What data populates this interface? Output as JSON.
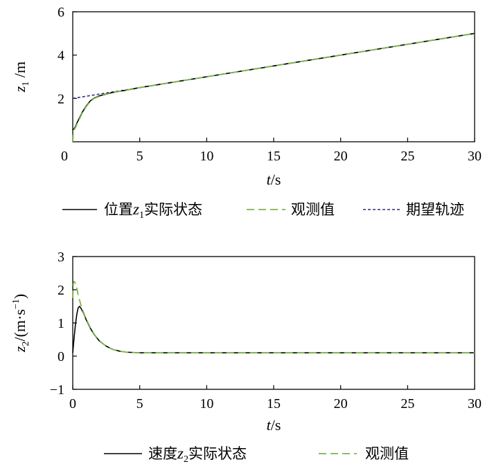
{
  "chart_data": [
    {
      "type": "line",
      "ylabel_var": "z",
      "ylabel_sub": "1",
      "ylabel_unit": " /m",
      "xlabel_var": "t",
      "xlabel_unit": "/s",
      "xlim": [
        0,
        30
      ],
      "ylim": [
        0,
        6
      ],
      "xticks": [
        0,
        5,
        10,
        15,
        20,
        25,
        30
      ],
      "yticks": [
        2,
        4,
        6
      ],
      "grid": false,
      "legend_position": "bottom",
      "series": [
        {
          "name": "位置z₁实际状态",
          "legend_prefix": "位置",
          "legend_var": "z",
          "legend_sub": "1",
          "legend_suffix": "实际状态",
          "color": "#000000",
          "style": "solid",
          "x": [
            0,
            0.1,
            0.2,
            0.3,
            0.5,
            0.7,
            1.0,
            1.3,
            1.6,
            2.0,
            2.5,
            3.0,
            3.5,
            4.0,
            5,
            10,
            15,
            20,
            25,
            30
          ],
          "y": [
            0.55,
            0.6,
            0.7,
            0.85,
            1.1,
            1.35,
            1.65,
            1.88,
            2.02,
            2.12,
            2.2,
            2.28,
            2.33,
            2.38,
            2.5,
            3.0,
            3.5,
            4.0,
            4.5,
            5.0
          ]
        },
        {
          "name": "观测值",
          "color": "#7ab648",
          "style": "dashed",
          "x": [
            0,
            0.05,
            0.1,
            0.2,
            0.3,
            0.5,
            0.7,
            1.0,
            1.3,
            1.6,
            2.0,
            2.5,
            3.0,
            3.5,
            4.0,
            5,
            10,
            15,
            20,
            25,
            30
          ],
          "y": [
            0.0,
            0.45,
            0.55,
            0.65,
            0.8,
            1.05,
            1.32,
            1.62,
            1.86,
            2.0,
            2.1,
            2.19,
            2.27,
            2.33,
            2.38,
            2.5,
            3.0,
            3.5,
            4.0,
            4.5,
            5.0
          ]
        },
        {
          "name": "期望轨迹",
          "color": "#2b2f7a",
          "style": "dotted",
          "x": [
            0,
            30
          ],
          "y": [
            2.0,
            5.0
          ]
        }
      ]
    },
    {
      "type": "line",
      "ylabel_var": "z",
      "ylabel_sub": "2",
      "ylabel_unit": "/(m·s",
      "ylabel_sup": "−1",
      "ylabel_end": ")",
      "xlabel_var": "t",
      "xlabel_unit": "/s",
      "xlim": [
        0,
        30
      ],
      "ylim": [
        -1,
        3
      ],
      "xticks": [
        0,
        5,
        10,
        15,
        20,
        25,
        30
      ],
      "yticks": [
        -1,
        0,
        1,
        2,
        3
      ],
      "ytick_labels": [
        "−1",
        "0",
        "1",
        "2",
        "3"
      ],
      "grid": false,
      "legend_position": "bottom",
      "series": [
        {
          "name": "速度z₂实际状态",
          "legend_prefix": "速度",
          "legend_var": "z",
          "legend_sub": "2",
          "legend_suffix": "实际状态",
          "color": "#000000",
          "style": "solid",
          "x": [
            0,
            0.1,
            0.2,
            0.3,
            0.4,
            0.5,
            0.6,
            0.8,
            1.0,
            1.3,
            1.6,
            2.0,
            2.5,
            3.0,
            3.5,
            4.0,
            5.0,
            10,
            15,
            20,
            25,
            30
          ],
          "y": [
            0.1,
            0.55,
            0.95,
            1.25,
            1.45,
            1.5,
            1.45,
            1.3,
            1.1,
            0.85,
            0.65,
            0.45,
            0.3,
            0.2,
            0.15,
            0.12,
            0.1,
            0.1,
            0.1,
            0.1,
            0.1,
            0.1
          ]
        },
        {
          "name": "观测值",
          "color": "#7ab648",
          "style": "dashed",
          "x": [
            0,
            0.05,
            0.1,
            0.2,
            0.3,
            0.4,
            0.5,
            0.6,
            0.8,
            1.0,
            1.3,
            1.6,
            2.0,
            2.5,
            3.0,
            3.5,
            4.0,
            5.0,
            10,
            15,
            20,
            25,
            30
          ],
          "y": [
            1.75,
            2.2,
            2.25,
            2.2,
            2.05,
            1.85,
            1.7,
            1.55,
            1.32,
            1.12,
            0.87,
            0.66,
            0.46,
            0.3,
            0.2,
            0.15,
            0.12,
            0.1,
            0.1,
            0.1,
            0.1,
            0.1,
            0.1
          ]
        }
      ]
    }
  ]
}
